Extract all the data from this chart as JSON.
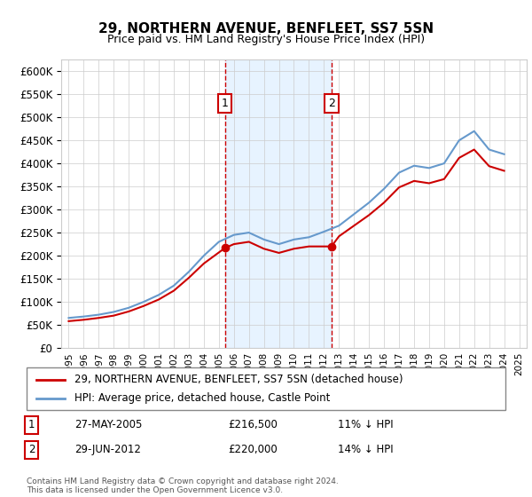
{
  "title": "29, NORTHERN AVENUE, BENFLEET, SS7 5SN",
  "subtitle": "Price paid vs. HM Land Registry's House Price Index (HPI)",
  "legend_line1": "29, NORTHERN AVENUE, BENFLEET, SS7 5SN (detached house)",
  "legend_line2": "HPI: Average price, detached house, Castle Point",
  "annotation1_label": "1",
  "annotation1_date": "27-MAY-2005",
  "annotation1_price": "£216,500",
  "annotation1_hpi": "11% ↓ HPI",
  "annotation2_label": "2",
  "annotation2_date": "29-JUN-2012",
  "annotation2_price": "£220,000",
  "annotation2_hpi": "14% ↓ HPI",
  "footer": "Contains HM Land Registry data © Crown copyright and database right 2024.\nThis data is licensed under the Open Government Licence v3.0.",
  "hpi_color": "#6699cc",
  "price_color": "#cc0000",
  "annotation_box_color": "#cc0000",
  "shading_color": "#ddeeff",
  "dashed_line_color": "#cc0000",
  "ylim_min": 0,
  "ylim_max": 625000,
  "yticks": [
    0,
    50000,
    100000,
    150000,
    200000,
    250000,
    300000,
    350000,
    400000,
    450000,
    500000,
    550000,
    600000
  ],
  "sale1_x": 2005.4,
  "sale1_y": 216500,
  "sale2_x": 2012.5,
  "sale2_y": 220000,
  "hpi_years": [
    1995,
    1996,
    1997,
    1998,
    1999,
    2000,
    2001,
    2002,
    2003,
    2004,
    2005,
    2006,
    2007,
    2008,
    2009,
    2010,
    2011,
    2012,
    2013,
    2014,
    2015,
    2016,
    2017,
    2018,
    2019,
    2020,
    2021,
    2022,
    2023,
    2024
  ],
  "hpi_values": [
    65000,
    68000,
    72000,
    78000,
    87000,
    100000,
    115000,
    135000,
    165000,
    200000,
    230000,
    245000,
    250000,
    235000,
    225000,
    235000,
    240000,
    252000,
    265000,
    290000,
    315000,
    345000,
    380000,
    395000,
    390000,
    400000,
    450000,
    470000,
    430000,
    420000
  ],
  "price_years": [
    1995.0,
    1996.0,
    1997.0,
    1998.0,
    1999.0,
    2000.0,
    2001.0,
    2002.0,
    2003.0,
    2004.0,
    2005.4,
    2006.0,
    2007.0,
    2008.0,
    2009.0,
    2010.0,
    2011.0,
    2012.5,
    2013.0,
    2014.0,
    2015.0,
    2016.0,
    2017.0,
    2018.0,
    2019.0,
    2020.0,
    2021.0,
    2022.0,
    2023.0,
    2024.0
  ],
  "price_values": [
    58000,
    61000,
    65000,
    70000,
    79000,
    91000,
    105000,
    124000,
    152000,
    183000,
    216500,
    225000,
    230000,
    215000,
    206000,
    215000,
    220000,
    220000,
    242000,
    265000,
    288000,
    315000,
    348000,
    362000,
    357000,
    366000,
    412000,
    430000,
    394000,
    384000
  ],
  "xlim_min": 1994.5,
  "xlim_max": 2025.5,
  "xticks": [
    1995,
    1996,
    1997,
    1998,
    1999,
    2000,
    2001,
    2002,
    2003,
    2004,
    2005,
    2006,
    2007,
    2008,
    2009,
    2010,
    2011,
    2012,
    2013,
    2014,
    2015,
    2016,
    2017,
    2018,
    2019,
    2020,
    2021,
    2022,
    2023,
    2024,
    2025
  ]
}
